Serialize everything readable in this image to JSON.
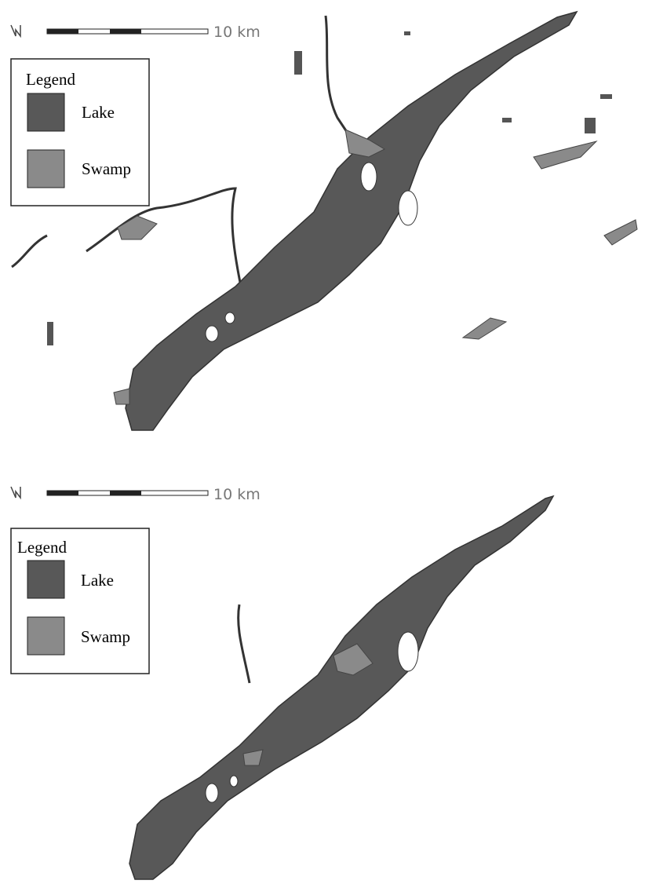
{
  "maps": [
    {
      "scale_label": "10 km",
      "legend": {
        "title": "Legend",
        "items": [
          "Lake",
          "Swamp"
        ]
      }
    },
    {
      "scale_label": "10 km",
      "legend": {
        "title": "Legend",
        "items": [
          "Lake",
          "Swamp"
        ]
      }
    }
  ]
}
